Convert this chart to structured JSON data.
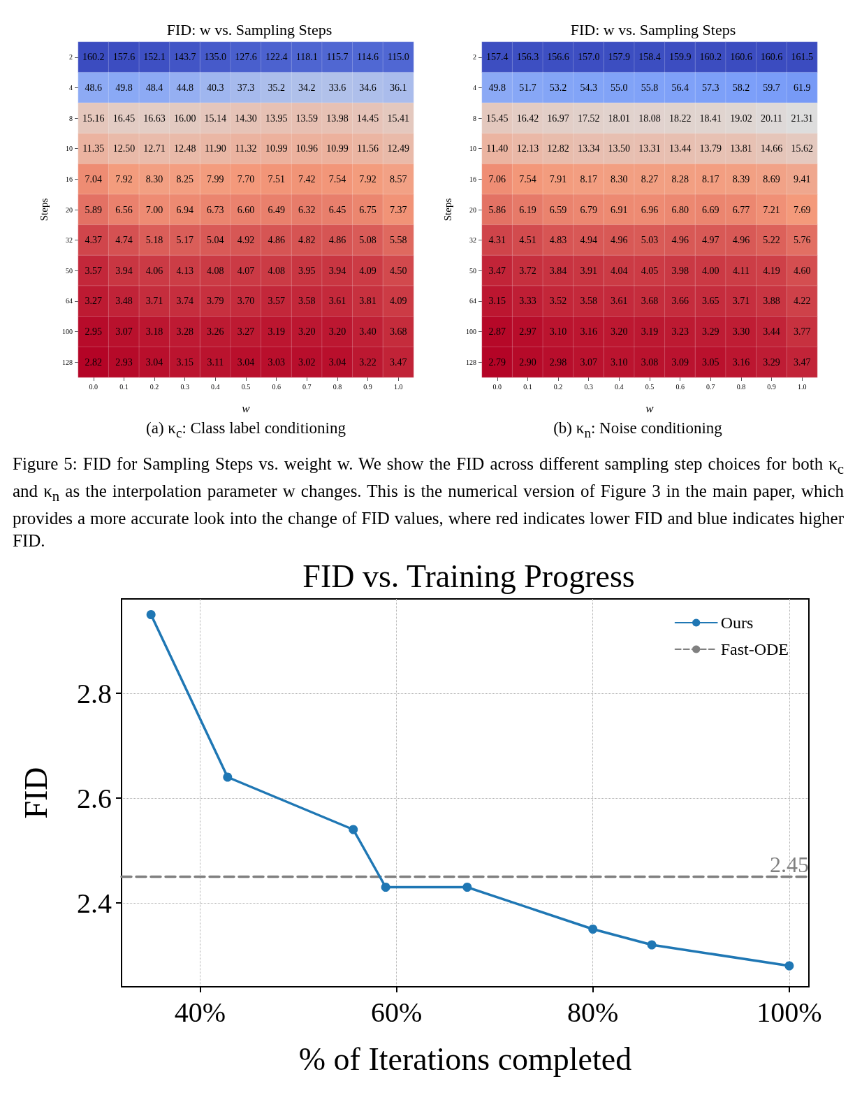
{
  "chart_data": [
    {
      "type": "heatmap",
      "title": "FID: w vs. Sampling Steps",
      "xlabel": "w",
      "ylabel": "Steps",
      "annotations": [
        "(a) κ$_{c}$: Class label conditioning"
      ],
      "categories": [
        "0.0",
        "0.1",
        "0.2",
        "0.3",
        "0.4",
        "0.5",
        "0.6",
        "0.7",
        "0.8",
        "0.9",
        "1.0"
      ],
      "y_categories": [
        "2",
        "4",
        "8",
        "10",
        "16",
        "20",
        "32",
        "50",
        "64",
        "100",
        "128"
      ],
      "cells": [
        [
          160.2,
          157.6,
          152.1,
          143.7,
          135.0,
          127.6,
          122.4,
          118.1,
          115.7,
          114.6,
          115.0
        ],
        [
          48.6,
          49.8,
          48.4,
          44.8,
          40.3,
          37.3,
          35.2,
          34.2,
          33.6,
          34.6,
          36.1
        ],
        [
          15.16,
          16.45,
          16.63,
          16.0,
          15.14,
          14.3,
          13.95,
          13.59,
          13.98,
          14.45,
          15.41
        ],
        [
          11.35,
          12.5,
          12.71,
          12.48,
          11.9,
          11.32,
          10.99,
          10.96,
          10.99,
          11.56,
          12.49
        ],
        [
          7.04,
          7.92,
          8.3,
          8.25,
          7.99,
          7.7,
          7.51,
          7.42,
          7.54,
          7.92,
          8.57
        ],
        [
          5.89,
          6.56,
          7.0,
          6.94,
          6.73,
          6.6,
          6.49,
          6.32,
          6.45,
          6.75,
          7.37
        ],
        [
          4.37,
          4.74,
          5.18,
          5.17,
          5.04,
          4.92,
          4.86,
          4.82,
          4.86,
          5.08,
          5.58
        ],
        [
          3.57,
          3.94,
          4.06,
          4.13,
          4.08,
          4.07,
          4.08,
          3.95,
          3.94,
          4.09,
          4.5
        ],
        [
          3.27,
          3.48,
          3.71,
          3.74,
          3.79,
          3.7,
          3.57,
          3.58,
          3.61,
          3.81,
          4.09
        ],
        [
          2.95,
          3.07,
          3.18,
          3.28,
          3.26,
          3.27,
          3.19,
          3.2,
          3.2,
          3.4,
          3.68
        ],
        [
          2.82,
          2.93,
          3.04,
          3.15,
          3.11,
          3.04,
          3.03,
          3.02,
          3.04,
          3.22,
          3.47
        ]
      ],
      "cell_labels": [
        [
          "160.2",
          "157.6",
          "152.1",
          "143.7",
          "135.0",
          "127.6",
          "122.4",
          "118.1",
          "115.7",
          "114.6",
          "115.0"
        ],
        [
          "48.6",
          "49.8",
          "48.4",
          "44.8",
          "40.3",
          "37.3",
          "35.2",
          "34.2",
          "33.6",
          "34.6",
          "36.1"
        ],
        [
          "15.16",
          "16.45",
          "16.63",
          "16.00",
          "15.14",
          "14.30",
          "13.95",
          "13.59",
          "13.98",
          "14.45",
          "15.41"
        ],
        [
          "11.35",
          "12.50",
          "12.71",
          "12.48",
          "11.90",
          "11.32",
          "10.99",
          "10.96",
          "10.99",
          "11.56",
          "12.49"
        ],
        [
          "7.04",
          "7.92",
          "8.30",
          "8.25",
          "7.99",
          "7.70",
          "7.51",
          "7.42",
          "7.54",
          "7.92",
          "8.57"
        ],
        [
          "5.89",
          "6.56",
          "7.00",
          "6.94",
          "6.73",
          "6.60",
          "6.49",
          "6.32",
          "6.45",
          "6.75",
          "7.37"
        ],
        [
          "4.37",
          "4.74",
          "5.18",
          "5.17",
          "5.04",
          "4.92",
          "4.86",
          "4.82",
          "4.86",
          "5.08",
          "5.58"
        ],
        [
          "3.57",
          "3.94",
          "4.06",
          "4.13",
          "4.08",
          "4.07",
          "4.08",
          "3.95",
          "3.94",
          "4.09",
          "4.50"
        ],
        [
          "3.27",
          "3.48",
          "3.71",
          "3.74",
          "3.79",
          "3.70",
          "3.57",
          "3.58",
          "3.61",
          "3.81",
          "4.09"
        ],
        [
          "2.95",
          "3.07",
          "3.18",
          "3.28",
          "3.26",
          "3.27",
          "3.19",
          "3.20",
          "3.20",
          "3.40",
          "3.68"
        ],
        [
          "2.82",
          "2.93",
          "3.04",
          "3.15",
          "3.11",
          "3.04",
          "3.03",
          "3.02",
          "3.04",
          "3.22",
          "3.47"
        ]
      ]
    },
    {
      "type": "heatmap",
      "title": "FID: w vs. Sampling Steps",
      "xlabel": "w",
      "ylabel": "Steps",
      "annotations": [
        "(b) κ$_{n}$: Noise conditioning",
        "Figure 5: FID for Sampling Steps vs. weight w. We show the FID across different sampling step choices for both κ$_{c}$ and κ$_{n}$ as the interpolation parameter w changes. This is the numerical version of Figure 3 in the main paper, which provides a more accurate look into the change of FID values, where red indicates lower FID and blue indicates higher FID."
      ],
      "categories": [
        "0.0",
        "0.1",
        "0.2",
        "0.3",
        "0.4",
        "0.5",
        "0.6",
        "0.7",
        "0.8",
        "0.9",
        "1.0"
      ],
      "y_categories": [
        "2",
        "4",
        "8",
        "10",
        "16",
        "20",
        "32",
        "50",
        "64",
        "100",
        "128"
      ],
      "cells": [
        [
          157.4,
          156.3,
          156.6,
          157.0,
          157.9,
          158.4,
          159.9,
          160.2,
          160.6,
          160.6,
          161.5
        ],
        [
          49.8,
          51.7,
          53.2,
          54.3,
          55.0,
          55.8,
          56.4,
          57.3,
          58.2,
          59.7,
          61.9
        ],
        [
          15.45,
          16.42,
          16.97,
          17.52,
          18.01,
          18.08,
          18.22,
          18.41,
          19.02,
          20.11,
          21.31
        ],
        [
          11.4,
          12.13,
          12.82,
          13.34,
          13.5,
          13.31,
          13.44,
          13.79,
          13.81,
          14.66,
          15.62
        ],
        [
          7.06,
          7.54,
          7.91,
          8.17,
          8.3,
          8.27,
          8.28,
          8.17,
          8.39,
          8.69,
          9.41
        ],
        [
          5.86,
          6.19,
          6.59,
          6.79,
          6.91,
          6.96,
          6.8,
          6.69,
          6.77,
          7.21,
          7.69
        ],
        [
          4.31,
          4.51,
          4.83,
          4.94,
          4.96,
          5.03,
          4.96,
          4.97,
          4.96,
          5.22,
          5.76
        ],
        [
          3.47,
          3.72,
          3.84,
          3.91,
          4.04,
          4.05,
          3.98,
          4.0,
          4.11,
          4.19,
          4.6
        ],
        [
          3.15,
          3.33,
          3.52,
          3.58,
          3.61,
          3.68,
          3.66,
          3.65,
          3.71,
          3.88,
          4.22
        ],
        [
          2.87,
          2.97,
          3.1,
          3.16,
          3.2,
          3.19,
          3.23,
          3.29,
          3.3,
          3.44,
          3.77
        ],
        [
          2.79,
          2.9,
          2.98,
          3.07,
          3.1,
          3.08,
          3.09,
          3.05,
          3.16,
          3.29,
          3.47
        ]
      ],
      "cell_labels": [
        [
          "157.4",
          "156.3",
          "156.6",
          "157.0",
          "157.9",
          "158.4",
          "159.9",
          "160.2",
          "160.6",
          "160.6",
          "161.5"
        ],
        [
          "49.8",
          "51.7",
          "53.2",
          "54.3",
          "55.0",
          "55.8",
          "56.4",
          "57.3",
          "58.2",
          "59.7",
          "61.9"
        ],
        [
          "15.45",
          "16.42",
          "16.97",
          "17.52",
          "18.01",
          "18.08",
          "18.22",
          "18.41",
          "19.02",
          "20.11",
          "21.31"
        ],
        [
          "11.40",
          "12.13",
          "12.82",
          "13.34",
          "13.50",
          "13.31",
          "13.44",
          "13.79",
          "13.81",
          "14.66",
          "15.62"
        ],
        [
          "7.06",
          "7.54",
          "7.91",
          "8.17",
          "8.30",
          "8.27",
          "8.28",
          "8.17",
          "8.39",
          "8.69",
          "9.41"
        ],
        [
          "5.86",
          "6.19",
          "6.59",
          "6.79",
          "6.91",
          "6.96",
          "6.80",
          "6.69",
          "6.77",
          "7.21",
          "7.69"
        ],
        [
          "4.31",
          "4.51",
          "4.83",
          "4.94",
          "4.96",
          "5.03",
          "4.96",
          "4.97",
          "4.96",
          "5.22",
          "5.76"
        ],
        [
          "3.47",
          "3.72",
          "3.84",
          "3.91",
          "4.04",
          "4.05",
          "3.98",
          "4.00",
          "4.11",
          "4.19",
          "4.60"
        ],
        [
          "3.15",
          "3.33",
          "3.52",
          "3.58",
          "3.61",
          "3.68",
          "3.66",
          "3.65",
          "3.71",
          "3.88",
          "4.22"
        ],
        [
          "2.87",
          "2.97",
          "3.10",
          "3.16",
          "3.20",
          "3.19",
          "3.23",
          "3.29",
          "3.30",
          "3.44",
          "3.77"
        ],
        [
          "2.79",
          "2.90",
          "2.98",
          "3.07",
          "3.10",
          "3.08",
          "3.09",
          "3.05",
          "3.16",
          "3.29",
          "3.47"
        ]
      ]
    },
    {
      "type": "line",
      "title": "FID vs. Training Progress",
      "xlabel": "% of Iterations completed",
      "ylabel": "FID",
      "xlim": [
        32,
        102
      ],
      "xticks": [
        {
          "value": 40,
          "label": "40%"
        },
        {
          "value": 60,
          "label": "60%"
        },
        {
          "value": 80,
          "label": "80%"
        },
        {
          "value": 100,
          "label": "100%"
        }
      ],
      "ylim": [
        2.24,
        2.98
      ],
      "yticks": [
        2.4,
        2.6,
        2.8
      ],
      "grid": true,
      "legend": "top right",
      "annotations": [
        {
          "text": "2.45",
          "x": 100,
          "y": 2.45
        }
      ],
      "series": [
        {
          "name": "Ours",
          "color": "#1f77b4",
          "marker": "circle",
          "line_style": "solid",
          "x": [
            35,
            42.8,
            55.6,
            58.9,
            67.2,
            80,
            86,
            100
          ],
          "values": [
            2.95,
            2.64,
            2.54,
            2.43,
            2.43,
            2.35,
            2.32,
            2.28
          ]
        },
        {
          "name": "Fast-ODE",
          "color": "#808080",
          "marker": "none",
          "line_style": "dashed",
          "x": [
            32,
            102
          ],
          "values": [
            2.45,
            2.45
          ]
        }
      ]
    }
  ]
}
